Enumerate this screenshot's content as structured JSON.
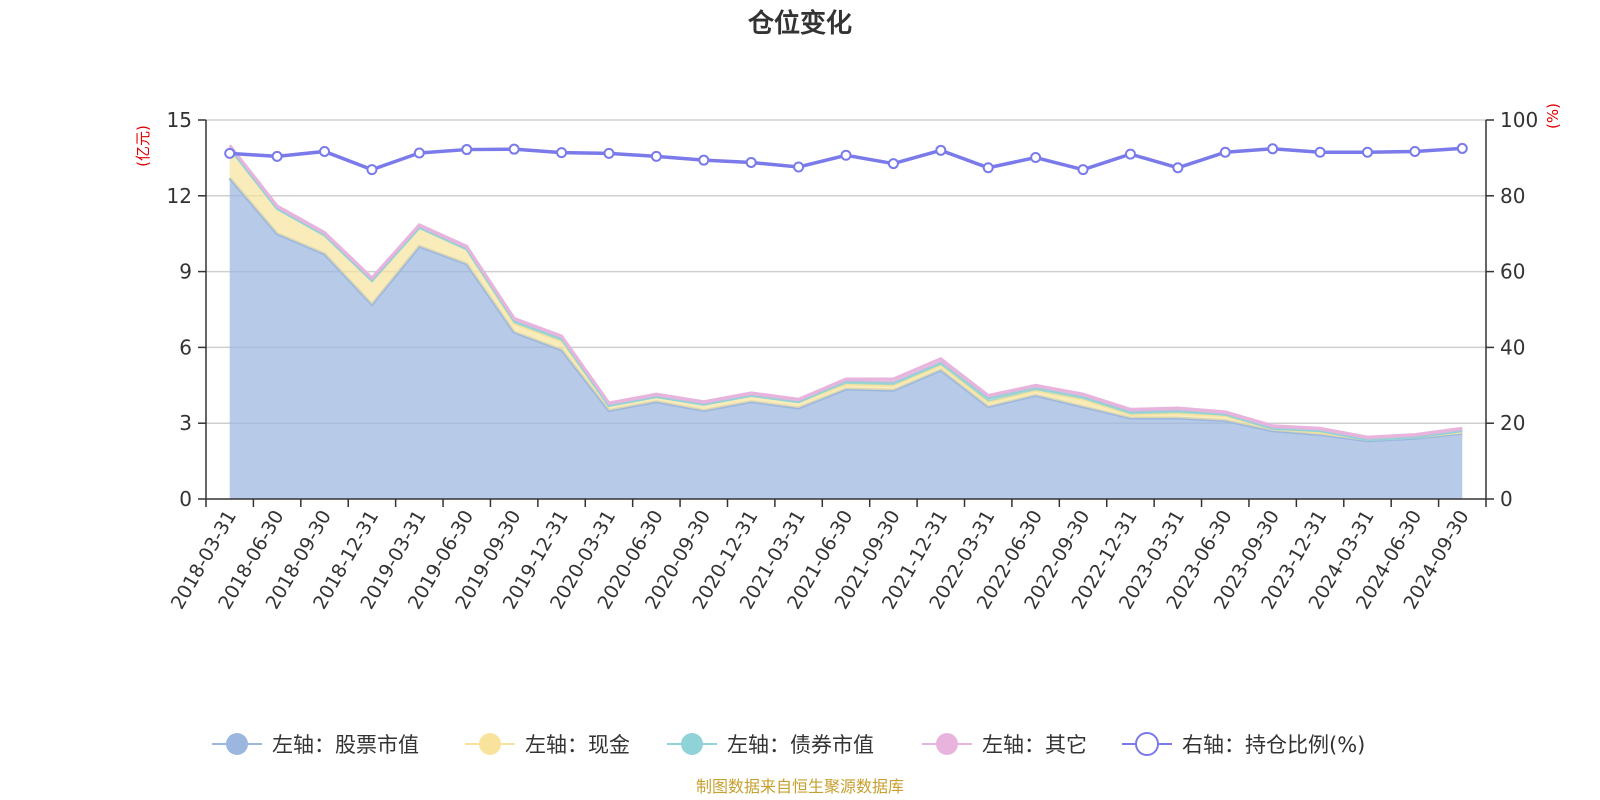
{
  "chart_data": {
    "type": "area",
    "title": "仓位变化",
    "left_axis_label": "(亿元)",
    "right_axis_label": "(%)",
    "left_ylim": [
      0,
      15
    ],
    "left_ticks": [
      0,
      3,
      6,
      9,
      12,
      15
    ],
    "right_ylim": [
      0,
      100
    ],
    "right_ticks": [
      0,
      20,
      40,
      60,
      80,
      100
    ],
    "categories": [
      "2018-03-31",
      "2018-06-30",
      "2018-09-30",
      "2018-12-31",
      "2019-03-31",
      "2019-06-30",
      "2019-09-30",
      "2019-12-31",
      "2020-03-31",
      "2020-06-30",
      "2020-09-30",
      "2020-12-31",
      "2021-03-31",
      "2021-06-30",
      "2021-09-30",
      "2021-12-31",
      "2022-03-31",
      "2022-06-30",
      "2022-09-30",
      "2022-12-31",
      "2023-03-31",
      "2023-06-30",
      "2023-09-30",
      "2023-12-31",
      "2024-03-31",
      "2024-06-30",
      "2024-09-30"
    ],
    "series": [
      {
        "name": "左轴：股票市值",
        "axis": "left",
        "color": "#9bb7e0",
        "values": [
          12.7,
          10.5,
          9.7,
          7.7,
          10.0,
          9.3,
          6.6,
          5.9,
          3.5,
          3.85,
          3.5,
          3.85,
          3.6,
          4.35,
          4.3,
          5.1,
          3.65,
          4.1,
          3.65,
          3.2,
          3.2,
          3.1,
          2.7,
          2.55,
          2.3,
          2.4,
          2.6
        ]
      },
      {
        "name": "左轴：现金",
        "axis": "left",
        "color": "#f7e39c",
        "values": [
          1.2,
          1.0,
          0.75,
          0.95,
          0.75,
          0.6,
          0.35,
          0.35,
          0.2,
          0.2,
          0.25,
          0.25,
          0.25,
          0.2,
          0.2,
          0.2,
          0.2,
          0.2,
          0.3,
          0.15,
          0.2,
          0.2,
          0.1,
          0.1,
          0.05,
          0.05,
          0.05
        ]
      },
      {
        "name": "左轴：债券市值",
        "axis": "left",
        "color": "#8fd3d8",
        "values": [
          0.0,
          0.0,
          0.0,
          0.0,
          0.0,
          0.0,
          0.1,
          0.1,
          0.0,
          0.0,
          0.0,
          0.0,
          0.0,
          0.1,
          0.1,
          0.1,
          0.15,
          0.1,
          0.1,
          0.1,
          0.1,
          0.05,
          0.0,
          0.05,
          0.0,
          0.0,
          0.05
        ]
      },
      {
        "name": "左轴：其它",
        "axis": "left",
        "color": "#e8b4dd",
        "values": [
          0.1,
          0.1,
          0.1,
          0.1,
          0.1,
          0.1,
          0.1,
          0.1,
          0.1,
          0.1,
          0.1,
          0.1,
          0.1,
          0.1,
          0.15,
          0.15,
          0.1,
          0.1,
          0.1,
          0.1,
          0.1,
          0.1,
          0.1,
          0.1,
          0.1,
          0.1,
          0.1
        ]
      },
      {
        "name": "右轴：持仓比例(%)",
        "axis": "right",
        "color": "#7a7aea",
        "values": [
          91.2,
          90.4,
          91.7,
          86.9,
          91.3,
          92.2,
          92.3,
          91.4,
          91.2,
          90.4,
          89.4,
          88.8,
          87.6,
          90.7,
          88.5,
          92.0,
          87.4,
          90.1,
          86.9,
          91.0,
          87.4,
          91.5,
          92.4,
          91.5,
          91.5,
          91.7,
          92.5
        ]
      }
    ]
  },
  "legend": [
    {
      "label": "左轴：股票市值",
      "color": "#9bb7e0",
      "style": "filled"
    },
    {
      "label": "左轴：现金",
      "color": "#f7e39c",
      "style": "filled"
    },
    {
      "label": "左轴：债券市值",
      "color": "#8fd3d8",
      "style": "filled"
    },
    {
      "label": "左轴：其它",
      "color": "#e8b4dd",
      "style": "filled"
    },
    {
      "label": "右轴：持仓比例(%)",
      "color": "#7a7aea",
      "style": "hollow"
    }
  ],
  "source": "制图数据来自恒生聚源数据库"
}
